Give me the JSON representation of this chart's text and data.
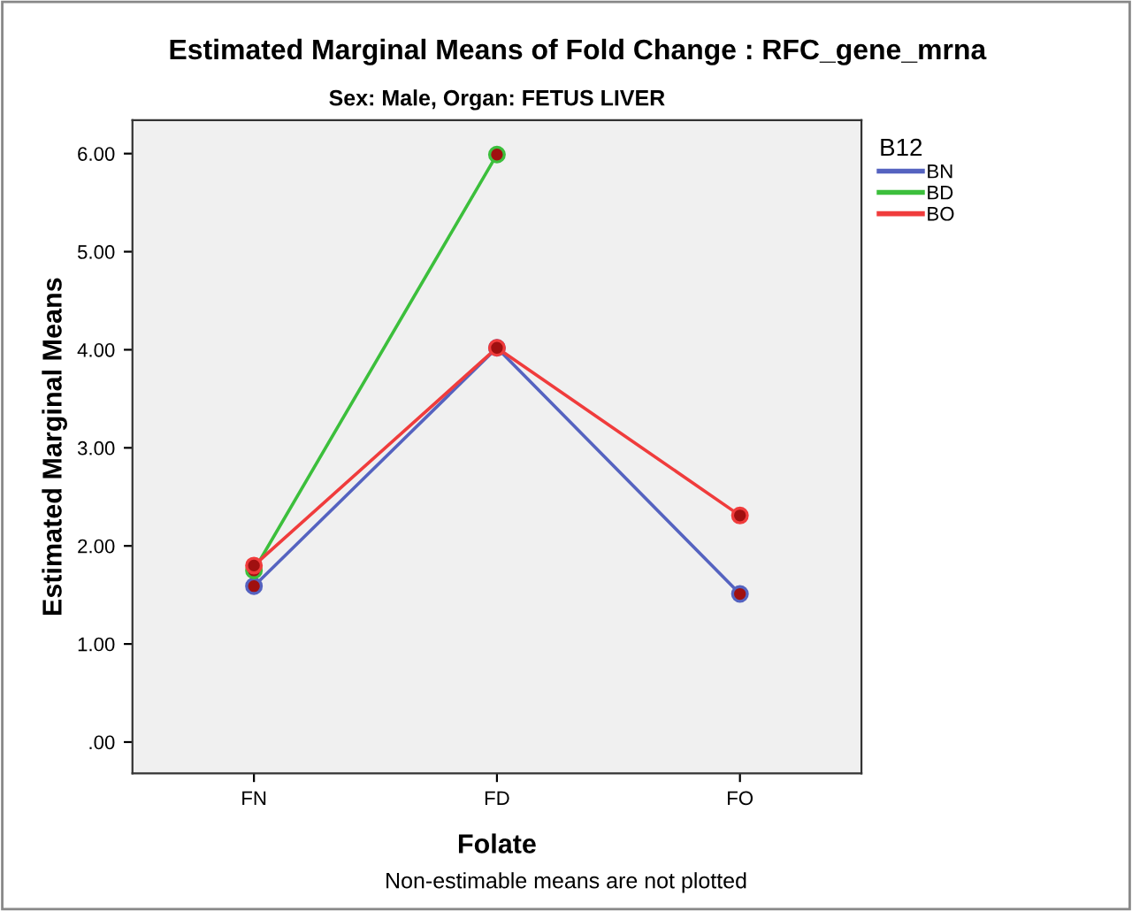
{
  "chart_data": {
    "type": "line",
    "title": "Estimated Marginal Means of Fold Change : RFC_gene_mrna",
    "subtitle": "Sex: Male, Organ: FETUS LIVER",
    "xlabel": "Folate",
    "ylabel": "Estimated Marginal Means",
    "legend_title": "B12",
    "categories": [
      "FN",
      "FD",
      "FO"
    ],
    "series": [
      {
        "name": "BN",
        "color": "#5563c0",
        "values": [
          1.59,
          4.02,
          1.51
        ]
      },
      {
        "name": "BD",
        "color": "#3cbf3c",
        "values": [
          1.75,
          5.99,
          null
        ]
      },
      {
        "name": "BO",
        "color": "#f03c3c",
        "values": [
          1.8,
          4.02,
          2.31
        ]
      }
    ],
    "ylim": [
      -0.32,
      6.34
    ],
    "yticks": [
      {
        "value": 0,
        "label": ".00"
      },
      {
        "value": 1,
        "label": "1.00"
      },
      {
        "value": 2,
        "label": "2.00"
      },
      {
        "value": 3,
        "label": "3.00"
      },
      {
        "value": 4,
        "label": "4.00"
      },
      {
        "value": 5,
        "label": "5.00"
      },
      {
        "value": 6,
        "label": "6.00"
      }
    ],
    "marker": "circle",
    "legend": "top right",
    "grid": false,
    "annotations": [
      "Non-estimable means are not plotted"
    ]
  }
}
